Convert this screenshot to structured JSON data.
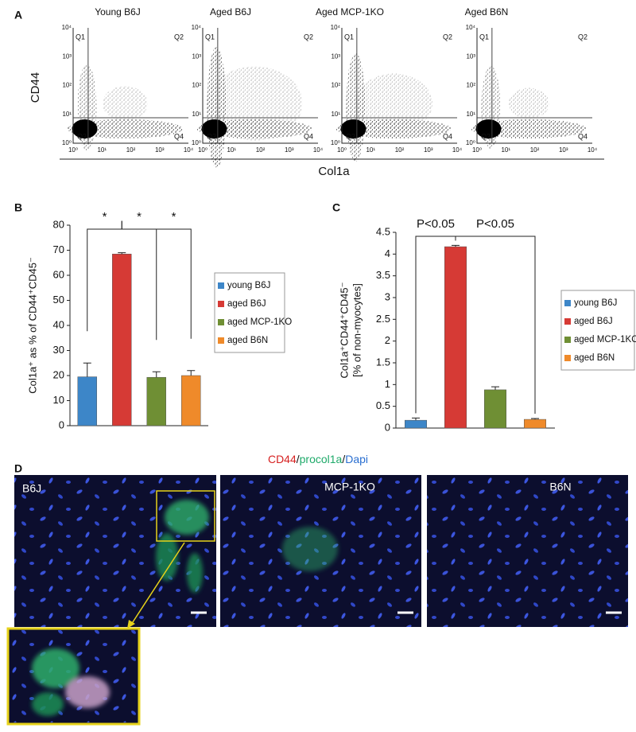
{
  "panel_a": {
    "label": "A",
    "titles": [
      "Young B6J",
      "Aged B6J",
      "Aged MCP-1KO",
      "Aged B6N"
    ],
    "quadrants": [
      "Q1",
      "Q2",
      "Q3",
      "Q4"
    ],
    "y_ticks": [
      "10⁰",
      "10¹",
      "10²",
      "10³",
      "10⁴"
    ],
    "x_ticks": [
      "10⁰",
      "10¹",
      "10²",
      "10³",
      "10⁴"
    ],
    "y_label": "CD44",
    "x_label": "Col1a"
  },
  "chart_data": [
    {
      "type": "bar",
      "label": "B",
      "y_label": [
        "Col1a⁺ as % of CD44⁺CD45⁻"
      ],
      "categories": [
        "young B6J",
        "aged B6J",
        "aged MCP-1KO",
        "aged B6N"
      ],
      "colors": [
        "#3d86c8",
        "#d63a35",
        "#6f8f34",
        "#ef8a2a"
      ],
      "values": [
        19.5,
        68.5,
        19.3,
        20
      ],
      "errors": [
        5.5,
        0.5,
        2.2,
        2
      ],
      "ylim": [
        0,
        80
      ],
      "yticks": [
        0,
        10,
        20,
        30,
        40,
        50,
        60,
        70,
        80
      ],
      "annotations": [
        "*",
        "*",
        "*"
      ]
    },
    {
      "type": "bar",
      "label": "C",
      "y_label": [
        "Col1a⁺CD44⁺CD45⁻",
        "[% of non-myocytes]"
      ],
      "categories": [
        "young B6J",
        "aged B6J",
        "aged MCP-1KO",
        "aged B6N"
      ],
      "colors": [
        "#3d86c8",
        "#d63a35",
        "#6f8f34",
        "#ef8a2a"
      ],
      "values": [
        0.18,
        4.17,
        0.88,
        0.2
      ],
      "errors": [
        0.05,
        0.03,
        0.07,
        0.02
      ],
      "ylim": [
        0,
        4.5
      ],
      "yticks": [
        0,
        0.5,
        1,
        1.5,
        2,
        2.5,
        3,
        3.5,
        4,
        4.5
      ],
      "annotations": [
        "P<0.05",
        "P<0.05"
      ]
    }
  ],
  "panel_d": {
    "label": "D",
    "title": [
      "CD44",
      "/",
      "procol1a",
      "/",
      "Dapi"
    ],
    "images": [
      "B6J",
      "MCP-1KO",
      "B6N"
    ]
  }
}
